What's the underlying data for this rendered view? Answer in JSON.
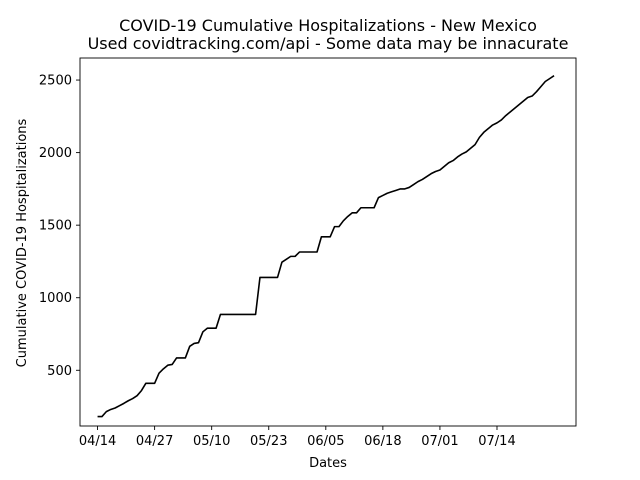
{
  "chart_data": {
    "type": "line",
    "title": "COVID-19 Cumulative Hospitalizations - New Mexico",
    "subtitle": "Used covidtracking.com/api - Some data may be innacurate",
    "xlabel": "Dates",
    "ylabel": "Cumulative COVID-19 Hospitalizations",
    "x_ticks": [
      "04/14",
      "04/27",
      "05/10",
      "05/23",
      "06/05",
      "06/18",
      "07/01",
      "07/14"
    ],
    "y_ticks": [
      500,
      1000,
      1500,
      2000,
      2500
    ],
    "xlim": [
      "2020-04-10",
      "2020-08-01"
    ],
    "ylim": [
      116,
      2652
    ],
    "grid": false,
    "legend": "none",
    "line_color": "#000000",
    "series": [
      {
        "dates": [
          "2020-04-14",
          "2020-04-15",
          "2020-04-16",
          "2020-04-17",
          "2020-04-18",
          "2020-04-19",
          "2020-04-20",
          "2020-04-21",
          "2020-04-22",
          "2020-04-23",
          "2020-04-24",
          "2020-04-25",
          "2020-04-26",
          "2020-04-27",
          "2020-04-28",
          "2020-04-29",
          "2020-04-30",
          "2020-05-01",
          "2020-05-02",
          "2020-05-03",
          "2020-05-04",
          "2020-05-05",
          "2020-05-06",
          "2020-05-07",
          "2020-05-08",
          "2020-05-09",
          "2020-05-10",
          "2020-05-11",
          "2020-05-12",
          "2020-05-13",
          "2020-05-14",
          "2020-05-15",
          "2020-05-16",
          "2020-05-17",
          "2020-05-18",
          "2020-05-19",
          "2020-05-20",
          "2020-05-21",
          "2020-05-22",
          "2020-05-23",
          "2020-05-24",
          "2020-05-25",
          "2020-05-26",
          "2020-05-27",
          "2020-05-28",
          "2020-05-29",
          "2020-05-30",
          "2020-05-31",
          "2020-06-01",
          "2020-06-02",
          "2020-06-03",
          "2020-06-04",
          "2020-06-05",
          "2020-06-06",
          "2020-06-07",
          "2020-06-08",
          "2020-06-09",
          "2020-06-10",
          "2020-06-11",
          "2020-06-12",
          "2020-06-13",
          "2020-06-14",
          "2020-06-15",
          "2020-06-16",
          "2020-06-17",
          "2020-06-18",
          "2020-06-19",
          "2020-06-20",
          "2020-06-21",
          "2020-06-22",
          "2020-06-23",
          "2020-06-24",
          "2020-06-25",
          "2020-06-26",
          "2020-06-27",
          "2020-06-28",
          "2020-06-29",
          "2020-06-30",
          "2020-07-01",
          "2020-07-02",
          "2020-07-03",
          "2020-07-04",
          "2020-07-05",
          "2020-07-06",
          "2020-07-07",
          "2020-07-08",
          "2020-07-09",
          "2020-07-10",
          "2020-07-11",
          "2020-07-12",
          "2020-07-13",
          "2020-07-14",
          "2020-07-15",
          "2020-07-16",
          "2020-07-17",
          "2020-07-18",
          "2020-07-19",
          "2020-07-20",
          "2020-07-21",
          "2020-07-22",
          "2020-07-23",
          "2020-07-24",
          "2020-07-25",
          "2020-07-26",
          "2020-07-27"
        ],
        "values": [
          181,
          181,
          215,
          230,
          240,
          256,
          272,
          290,
          305,
          325,
          360,
          410,
          410,
          410,
          480,
          510,
          535,
          540,
          585,
          585,
          585,
          665,
          685,
          690,
          765,
          790,
          790,
          790,
          885,
          885,
          885,
          885,
          885,
          885,
          885,
          885,
          885,
          1140,
          1140,
          1140,
          1140,
          1140,
          1245,
          1265,
          1285,
          1285,
          1315,
          1315,
          1315,
          1315,
          1315,
          1420,
          1420,
          1420,
          1490,
          1490,
          1530,
          1560,
          1585,
          1585,
          1620,
          1620,
          1620,
          1620,
          1690,
          1705,
          1720,
          1730,
          1740,
          1750,
          1750,
          1760,
          1780,
          1800,
          1815,
          1835,
          1855,
          1870,
          1880,
          1905,
          1930,
          1945,
          1970,
          1990,
          2005,
          2030,
          2055,
          2105,
          2140,
          2165,
          2190,
          2205,
          2225,
          2255,
          2280,
          2305,
          2330,
          2355,
          2380,
          2390,
          2420,
          2455,
          2490,
          2510,
          2530
        ]
      }
    ]
  }
}
